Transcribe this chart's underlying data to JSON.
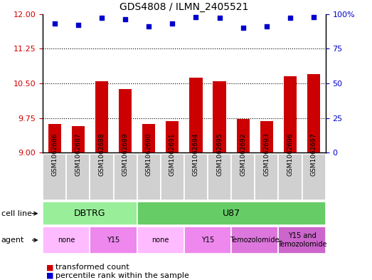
{
  "title": "GDS4808 / ILMN_2405521",
  "samples": [
    "GSM1062686",
    "GSM1062687",
    "GSM1062688",
    "GSM1062689",
    "GSM1062690",
    "GSM1062691",
    "GSM1062694",
    "GSM1062695",
    "GSM1062692",
    "GSM1062693",
    "GSM1062696",
    "GSM1062697"
  ],
  "transformed_count": [
    9.62,
    9.57,
    10.55,
    10.37,
    9.62,
    9.68,
    10.62,
    10.55,
    9.73,
    9.68,
    10.65,
    10.7
  ],
  "percentile_rank": [
    93,
    92,
    97,
    96,
    91,
    93,
    98,
    97,
    90,
    91,
    97,
    98
  ],
  "ylim_left": [
    9.0,
    12.0
  ],
  "ylim_right": [
    0,
    100
  ],
  "yticks_left": [
    9.0,
    9.75,
    10.5,
    11.25,
    12.0
  ],
  "yticks_right": [
    0,
    25,
    50,
    75,
    100
  ],
  "bar_color": "#cc0000",
  "dot_color": "#0000cc",
  "sample_box_color": "#d0d0d0",
  "cell_line_groups": [
    {
      "label": "DBTRG",
      "start": 0,
      "end": 4,
      "color": "#99ee99"
    },
    {
      "label": "U87",
      "start": 4,
      "end": 12,
      "color": "#66cc66"
    }
  ],
  "agent_groups": [
    {
      "label": "none",
      "start": 0,
      "end": 2,
      "color": "#ffbbff"
    },
    {
      "label": "Y15",
      "start": 2,
      "end": 4,
      "color": "#ee88ee"
    },
    {
      "label": "none",
      "start": 4,
      "end": 6,
      "color": "#ffbbff"
    },
    {
      "label": "Y15",
      "start": 6,
      "end": 8,
      "color": "#ee88ee"
    },
    {
      "label": "Temozolomide",
      "start": 8,
      "end": 10,
      "color": "#dd77dd"
    },
    {
      "label": "Y15 and\nTemozolomide",
      "start": 10,
      "end": 12,
      "color": "#cc66cc"
    }
  ],
  "legend_bar_label": "transformed count",
  "legend_dot_label": "percentile rank within the sample",
  "cell_line_label": "cell line",
  "agent_label": "agent",
  "tick_label_color_left": "#cc0000",
  "tick_label_color_right": "#0000cc"
}
